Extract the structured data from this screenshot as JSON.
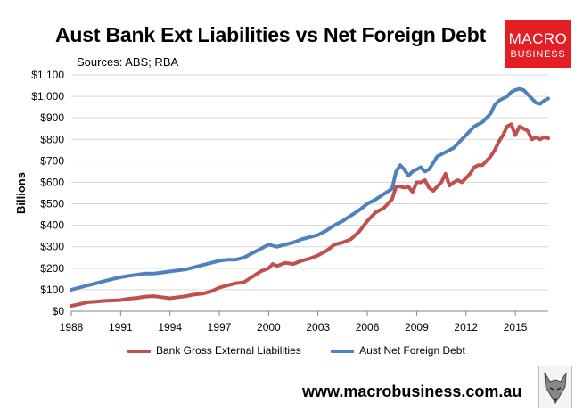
{
  "header": {
    "title": "Aust Bank Ext Liabilities vs Net Foreign Debt",
    "subtitle": "Sources: ABS; RBA"
  },
  "logo": {
    "line1": "MACRO",
    "line2": "BUSINESS",
    "color": "#e31e24"
  },
  "footer": {
    "website": "www.macrobusiness.com.au",
    "mascot_icon": "fox-icon"
  },
  "chart_data": {
    "type": "line",
    "title": "Aust Bank Ext Liabilities vs Net Foreign Debt",
    "subtitle": "Sources: ABS; RBA",
    "xlabel": "",
    "ylabel": "Billions",
    "xlim": [
      1988,
      2017
    ],
    "ylim": [
      0,
      1100
    ],
    "x_ticks": [
      "1988",
      "1991",
      "1994",
      "1997",
      "2000",
      "2003",
      "2006",
      "2009",
      "2012",
      "2015"
    ],
    "y_ticks": [
      "$0",
      "$100",
      "$200",
      "$300",
      "$400",
      "$500",
      "$600",
      "$700",
      "$800",
      "$900",
      "$1,000",
      "$1,100"
    ],
    "y_tick_values": [
      0,
      100,
      200,
      300,
      400,
      500,
      600,
      700,
      800,
      900,
      1000,
      1100
    ],
    "x_tick_values": [
      1988,
      1991,
      1994,
      1997,
      2000,
      2003,
      2006,
      2009,
      2012,
      2015
    ],
    "grid": "horizontal",
    "legend_position": "bottom",
    "series": [
      {
        "name": "Bank Gross External Liabilities",
        "color": "#c0504d",
        "x": [
          1988,
          1988.5,
          1989,
          1989.5,
          1990,
          1990.5,
          1991,
          1991.5,
          1992,
          1992.5,
          1993,
          1993.5,
          1994,
          1994.5,
          1995,
          1995.5,
          1996,
          1996.5,
          1997,
          1997.5,
          1998,
          1998.5,
          1999,
          1999.5,
          2000,
          2000.25,
          2000.5,
          2001,
          2001.5,
          2002,
          2002.5,
          2003,
          2003.5,
          2004,
          2004.5,
          2005,
          2005.5,
          2006,
          2006.5,
          2007,
          2007.5,
          2007.75,
          2008,
          2008.25,
          2008.5,
          2008.75,
          2009,
          2009.25,
          2009.5,
          2009.75,
          2010,
          2010.25,
          2010.5,
          2010.75,
          2011,
          2011.25,
          2011.5,
          2011.75,
          2012,
          2012.25,
          2012.5,
          2012.75,
          2013,
          2013.25,
          2013.5,
          2013.75,
          2014,
          2014.25,
          2014.5,
          2014.75,
          2015,
          2015.25,
          2015.5,
          2015.75,
          2016,
          2016.25,
          2016.5,
          2016.75,
          2017
        ],
        "y": [
          25,
          33,
          42,
          45,
          48,
          50,
          52,
          58,
          62,
          68,
          70,
          65,
          60,
          65,
          70,
          78,
          82,
          92,
          110,
          120,
          130,
          135,
          160,
          185,
          200,
          220,
          210,
          225,
          220,
          235,
          245,
          260,
          280,
          310,
          320,
          335,
          370,
          420,
          460,
          480,
          520,
          580,
          580,
          575,
          580,
          555,
          600,
          600,
          610,
          575,
          560,
          580,
          600,
          640,
          585,
          600,
          610,
          600,
          620,
          640,
          670,
          680,
          680,
          700,
          720,
          750,
          790,
          820,
          860,
          870,
          820,
          860,
          850,
          840,
          800,
          810,
          800,
          810,
          805
        ]
      },
      {
        "name": "Aust Net Foreign Debt",
        "color": "#4f81bd",
        "x": [
          1988,
          1988.5,
          1989,
          1989.5,
          1990,
          1990.5,
          1991,
          1991.5,
          1992,
          1992.5,
          1993,
          1993.5,
          1994,
          1994.5,
          1995,
          1995.5,
          1996,
          1996.5,
          1997,
          1997.5,
          1998,
          1998.5,
          1999,
          1999.5,
          2000,
          2000.25,
          2000.5,
          2001,
          2001.5,
          2002,
          2002.5,
          2003,
          2003.5,
          2004,
          2004.5,
          2005,
          2005.5,
          2006,
          2006.5,
          2007,
          2007.5,
          2007.75,
          2008,
          2008.25,
          2008.5,
          2008.75,
          2009,
          2009.25,
          2009.5,
          2009.75,
          2010,
          2010.25,
          2010.5,
          2010.75,
          2011,
          2011.25,
          2011.5,
          2011.75,
          2012,
          2012.25,
          2012.5,
          2012.75,
          2013,
          2013.25,
          2013.5,
          2013.75,
          2014,
          2014.25,
          2014.5,
          2014.75,
          2015,
          2015.25,
          2015.5,
          2015.75,
          2016,
          2016.25,
          2016.5,
          2016.75,
          2017
        ],
        "y": [
          100,
          110,
          120,
          130,
          140,
          150,
          158,
          165,
          170,
          175,
          175,
          180,
          185,
          190,
          195,
          205,
          215,
          225,
          235,
          240,
          240,
          250,
          270,
          290,
          310,
          305,
          300,
          310,
          320,
          335,
          345,
          355,
          375,
          400,
          420,
          445,
          470,
          500,
          520,
          545,
          570,
          650,
          680,
          660,
          630,
          650,
          660,
          670,
          650,
          660,
          690,
          720,
          730,
          740,
          750,
          760,
          780,
          800,
          820,
          840,
          860,
          870,
          880,
          900,
          920,
          960,
          980,
          990,
          1000,
          1020,
          1030,
          1035,
          1030,
          1010,
          990,
          970,
          965,
          980,
          990
        ]
      }
    ]
  }
}
